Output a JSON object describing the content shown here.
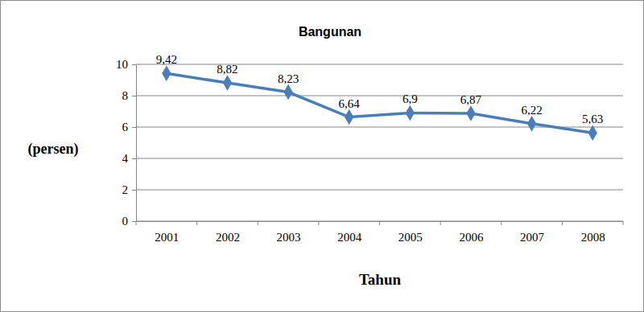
{
  "chart_data": {
    "type": "line",
    "title": "Bangunan",
    "x_label": "Tahun",
    "y_label": "(persen)",
    "categories": [
      "2001",
      "2002",
      "2003",
      "2004",
      "2005",
      "2006",
      "2007",
      "2008"
    ],
    "values": [
      9.42,
      8.82,
      8.23,
      6.64,
      6.9,
      6.87,
      6.22,
      5.63
    ],
    "value_labels": [
      "9,42",
      "8,82",
      "8,23",
      "6,64",
      "6,9",
      "6,87",
      "6,22",
      "5,63"
    ],
    "color": "#4a7ebb",
    "marker": "diamond",
    "line_style": "solid",
    "ylim": [
      0,
      10
    ],
    "yticks": [
      0,
      2,
      4,
      6,
      8,
      10
    ],
    "grid": true,
    "data_labels": true
  }
}
